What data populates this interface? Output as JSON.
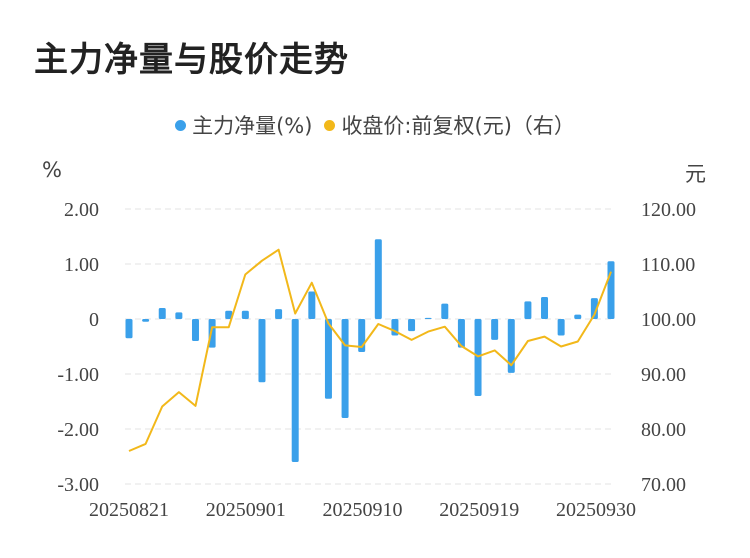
{
  "title": "主力净量与股价走势",
  "legend": {
    "left_series": "主力净量(%)",
    "right_series": "收盘价:前复权(元)（右）"
  },
  "units": {
    "left": "%",
    "right": "元"
  },
  "colors": {
    "bar": "#3aa0ea",
    "line": "#f2b81a",
    "grid": "#e3e3e3",
    "text": "#444444"
  },
  "chart_data": {
    "type": "bar+line",
    "x_tick_labels": [
      "20250821",
      "20250901",
      "20250910",
      "20250919",
      "20250930"
    ],
    "y_left": {
      "ticks": [
        "2.00",
        "1.00",
        "0",
        "-1.00",
        "-2.00",
        "-3.00"
      ],
      "range": [
        -3,
        2
      ]
    },
    "y_right": {
      "ticks": [
        "120.00",
        "110.00",
        "100.00",
        "90.00",
        "80.00",
        "70.00"
      ],
      "range": [
        70,
        120
      ]
    },
    "bars": [
      -0.35,
      -0.05,
      0.2,
      0.12,
      -0.4,
      -0.52,
      0.15,
      0.15,
      -1.15,
      0.18,
      -2.6,
      0.5,
      -1.45,
      -1.8,
      -0.6,
      1.45,
      -0.3,
      -0.22,
      0.02,
      0.28,
      -0.52,
      -1.4,
      -0.38,
      -0.98,
      0.32,
      0.4,
      -0.3,
      0.08,
      0.38,
      1.05
    ],
    "line": [
      76,
      77.3,
      84.1,
      86.7,
      84.2,
      98.5,
      98.5,
      108.1,
      110.6,
      112.6,
      101,
      106.6,
      99.2,
      95.2,
      94.9,
      99.1,
      97.8,
      96.2,
      97.7,
      98.6,
      95.1,
      93.2,
      94.3,
      91.6,
      96,
      96.8,
      95,
      95.9,
      100.8,
      108.6
    ]
  }
}
